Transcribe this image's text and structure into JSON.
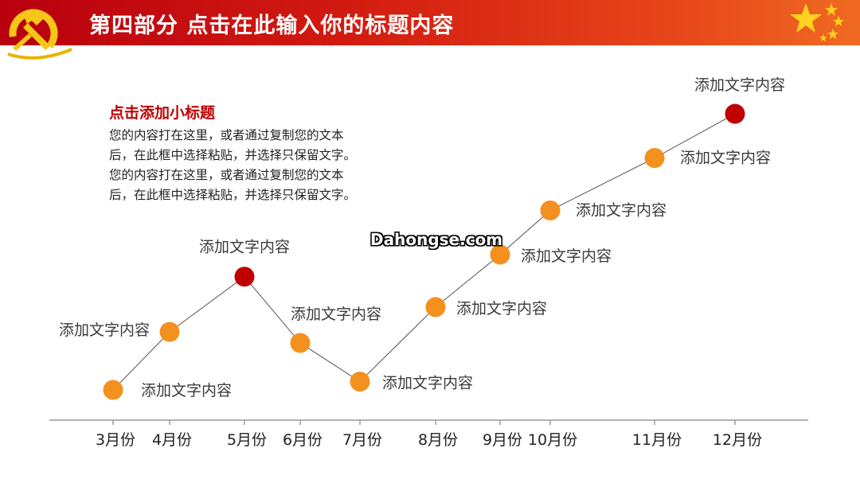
{
  "header": {
    "title": "第四部分  点击在此输入你的标题内容",
    "colors": {
      "banner_start": "#b8000f",
      "banner_end": "#f06a22",
      "emblem": "#f5c518",
      "star": "#ffd21f"
    },
    "icons": {
      "emblem": "hammer-sickle-icon",
      "stars": "star-icon"
    }
  },
  "content": {
    "subtitle": "点击添加小标题",
    "lines": [
      "您的内容打在这里，或者通过复制您的文本",
      "后，在此框中选择粘贴，并选择只保留文字。",
      "您的内容打在这里，或者通过复制您的文本",
      "后，在此框中选择粘贴，并选择只保留文字。"
    ]
  },
  "watermark": "Dahongse.com",
  "chart_data": {
    "type": "line",
    "points": [
      {
        "tick": "3月份",
        "level": 0.0,
        "label": "添加文字内容",
        "highlight": false
      },
      {
        "tick": "4月份",
        "level": 0.21,
        "label": "添加文字内容",
        "highlight": false
      },
      {
        "tick": "5月份",
        "level": 0.41,
        "label": "添加文字内容",
        "highlight": true
      },
      {
        "tick": "6月份",
        "level": 0.17,
        "label": "添加文字内容",
        "highlight": false
      },
      {
        "tick": "7月份",
        "level": 0.03,
        "label": "添加文字内容",
        "highlight": false
      },
      {
        "tick": "8月份",
        "level": 0.3,
        "label": "添加文字内容",
        "highlight": false
      },
      {
        "tick": "9月份",
        "level": 0.49,
        "label": "添加文字内容",
        "highlight": false
      },
      {
        "tick": "10月份",
        "level": 0.65,
        "label": "添加文字内容",
        "highlight": false
      },
      {
        "tick": "11月份",
        "level": 0.84,
        "label": "添加文字内容",
        "highlight": false
      },
      {
        "tick": "12月份",
        "level": 1.0,
        "label": "添加文字内容",
        "highlight": true
      }
    ],
    "colors": {
      "point": "#f4901e",
      "highlight": "#c00000",
      "line": "#555555",
      "axis": "#9a9a9a"
    }
  }
}
